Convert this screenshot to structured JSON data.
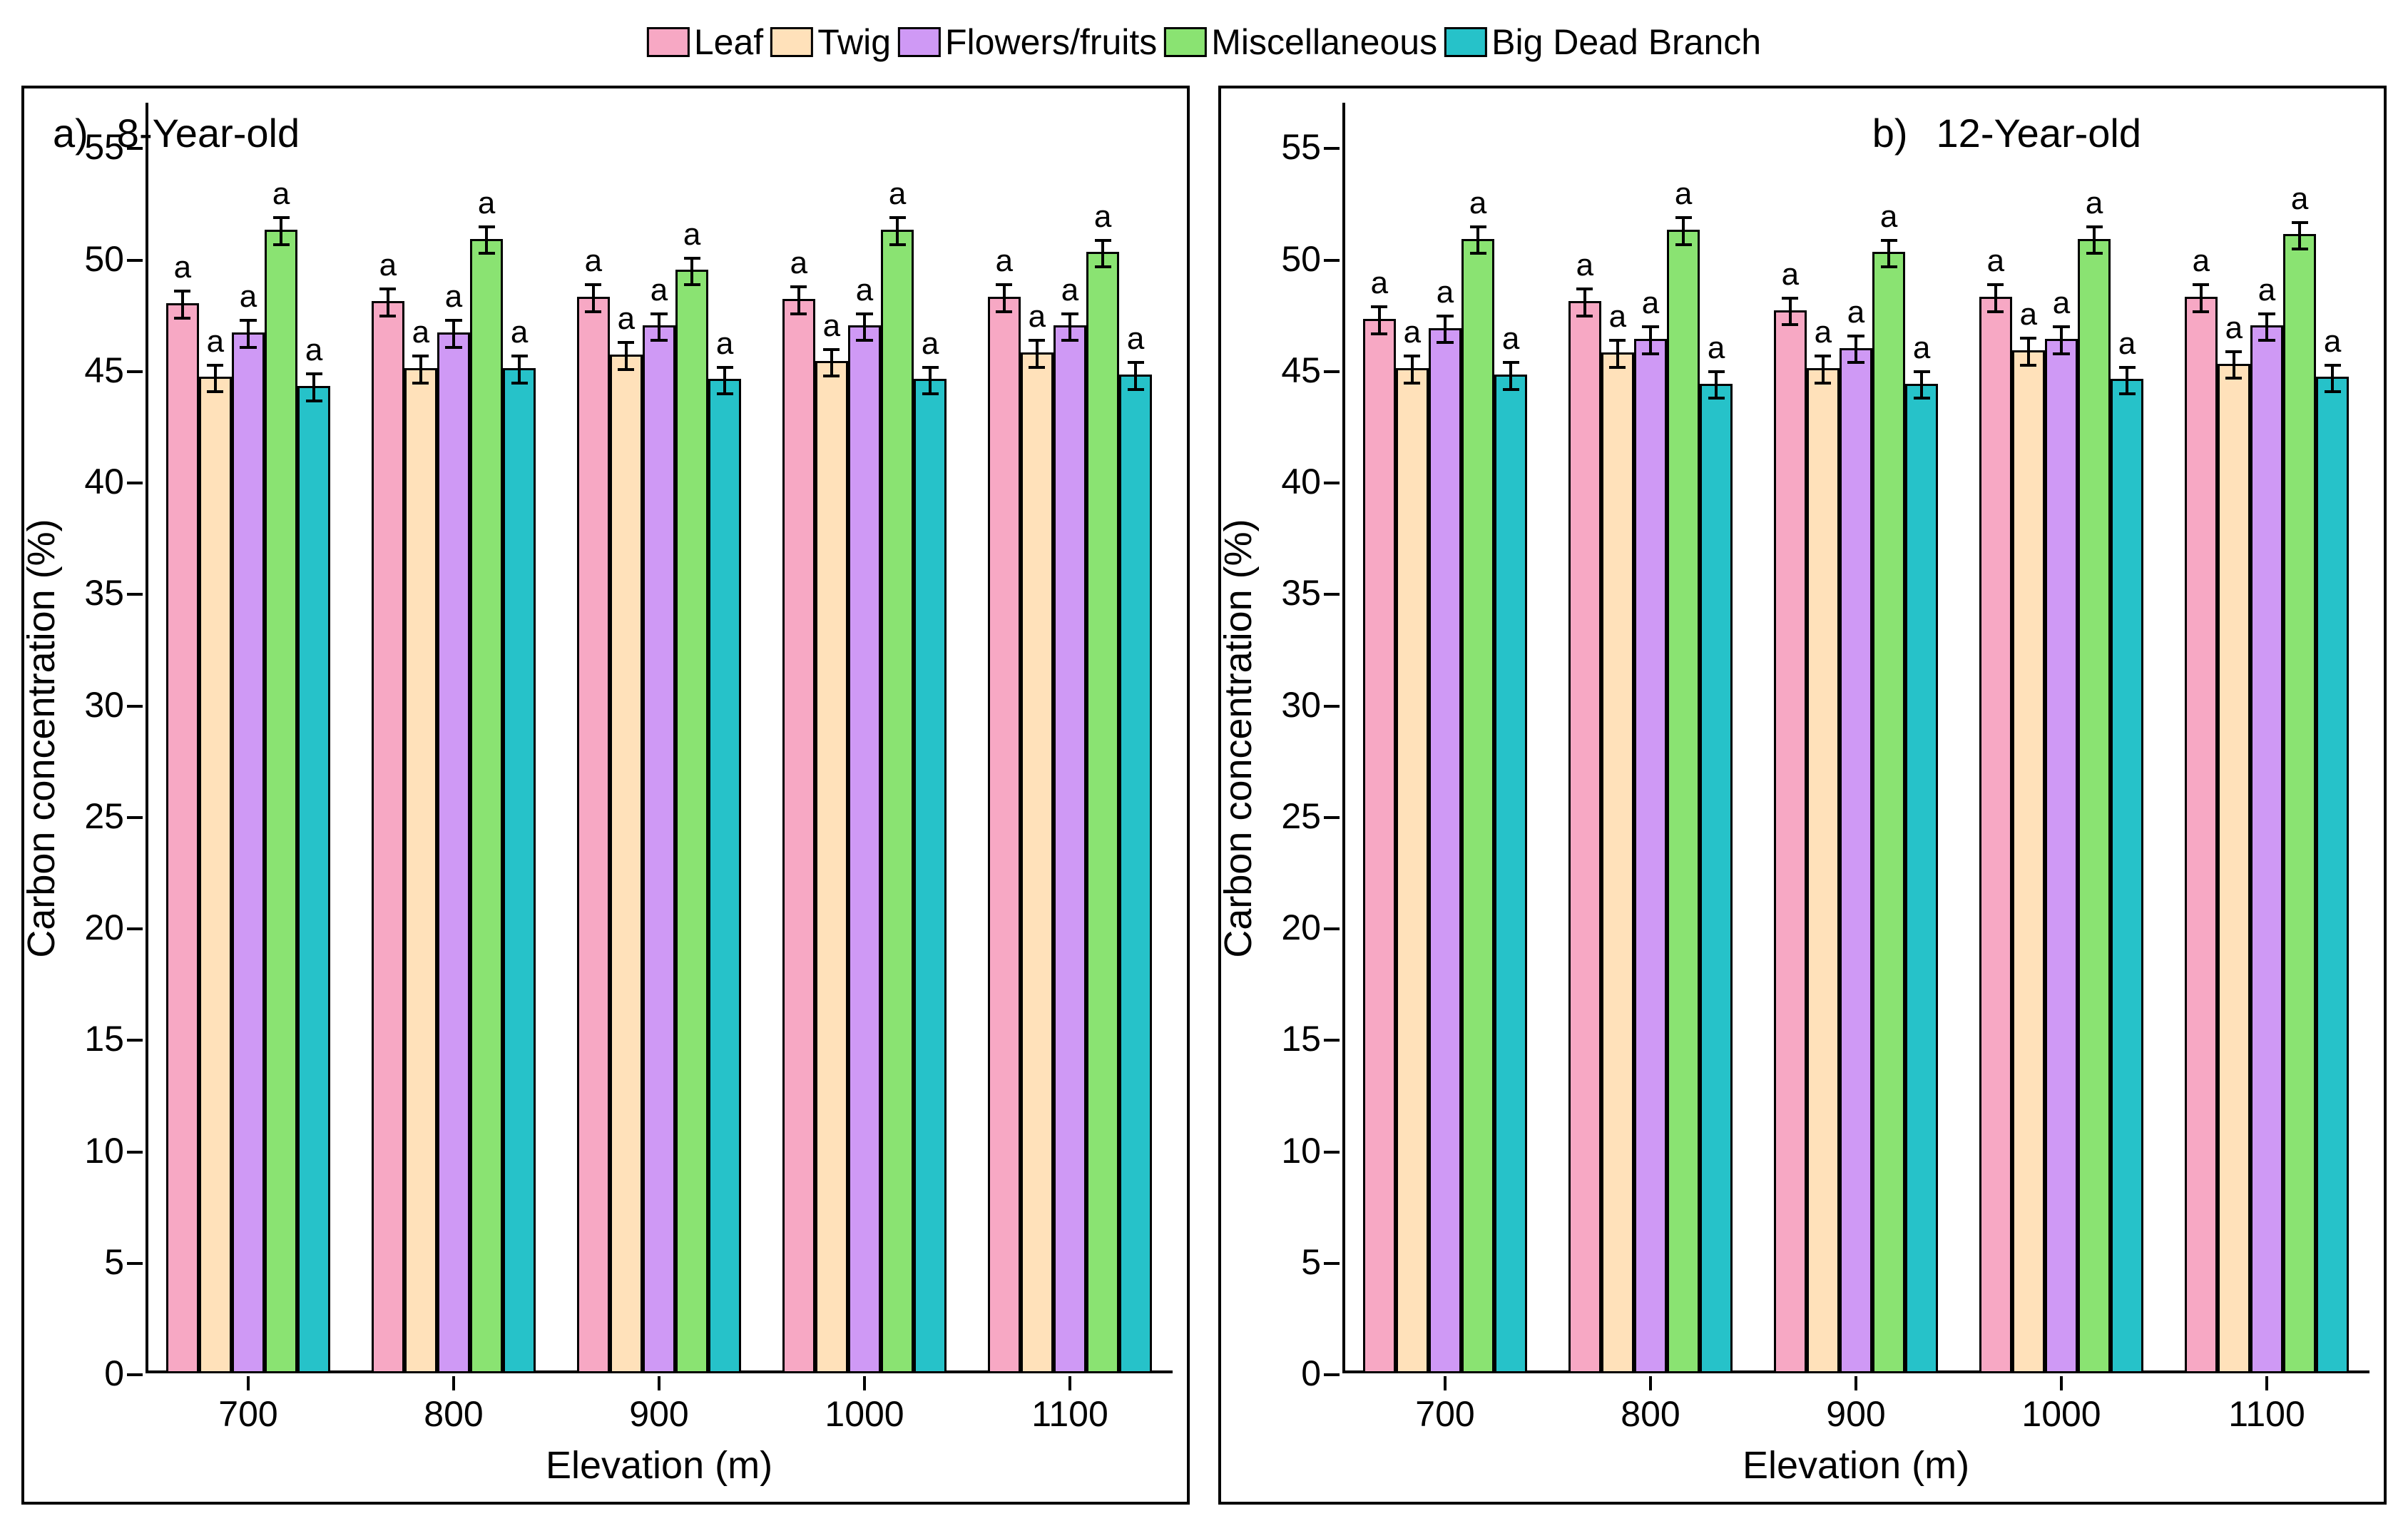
{
  "legend": {
    "items": [
      {
        "label": "Leaf",
        "color": "#f7a8c4"
      },
      {
        "label": "Twig",
        "color": "#ffe1ba"
      },
      {
        "label": "Flowers/fruits",
        "color": "#cf99f5"
      },
      {
        "label": "Miscellaneous",
        "color": "#8ae372"
      },
      {
        "label": "Big Dead Branch",
        "color": "#26c2c9"
      }
    ]
  },
  "chart": {
    "type": "bar",
    "ylim": [
      0,
      57
    ],
    "yticks": [
      0,
      5,
      10,
      15,
      20,
      25,
      30,
      35,
      40,
      45,
      50,
      55
    ],
    "ytick_labels": [
      "0",
      "5",
      "10",
      "15",
      "20",
      "25",
      "30",
      "35",
      "40",
      "45",
      "50",
      "55"
    ],
    "ylabel": "Carbon concentration (%)",
    "xlabel": "Elevation (m)",
    "categories": [
      "700",
      "800",
      "900",
      "1000",
      "1100"
    ],
    "series_colors": [
      "#f7a8c4",
      "#ffe1ba",
      "#cf99f5",
      "#8ae372",
      "#26c2c9"
    ],
    "bar_border": "#000000",
    "bar_border_width": 3,
    "background_color": "#ffffff",
    "axis_fontsize": 50,
    "label_fontsize": 54,
    "sig_label": "a",
    "error_half": 0.6
  },
  "panels": [
    {
      "tag": "a)",
      "title": "8-Year-old",
      "tag_side": "left",
      "data": [
        {
          "elev": "700",
          "values": [
            48.0,
            44.7,
            46.7,
            51.3,
            44.3
          ]
        },
        {
          "elev": "800",
          "values": [
            48.1,
            45.1,
            46.7,
            50.9,
            45.1
          ]
        },
        {
          "elev": "900",
          "values": [
            48.3,
            45.7,
            47.0,
            49.5,
            44.6
          ]
        },
        {
          "elev": "1000",
          "values": [
            48.2,
            45.4,
            47.0,
            51.3,
            44.6
          ]
        },
        {
          "elev": "1100",
          "values": [
            48.3,
            45.8,
            47.0,
            50.3,
            44.8
          ]
        }
      ]
    },
    {
      "tag": "b)",
      "title": "12-Year-old",
      "tag_side": "right",
      "data": [
        {
          "elev": "700",
          "values": [
            47.3,
            45.1,
            46.9,
            50.9,
            44.8
          ]
        },
        {
          "elev": "800",
          "values": [
            48.1,
            45.8,
            46.4,
            51.3,
            44.4
          ]
        },
        {
          "elev": "900",
          "values": [
            47.7,
            45.1,
            46.0,
            50.3,
            44.4
          ]
        },
        {
          "elev": "1000",
          "values": [
            48.3,
            45.9,
            46.4,
            50.9,
            44.6
          ]
        },
        {
          "elev": "1100",
          "values": [
            48.3,
            45.3,
            47.0,
            51.1,
            44.7
          ]
        }
      ]
    }
  ]
}
